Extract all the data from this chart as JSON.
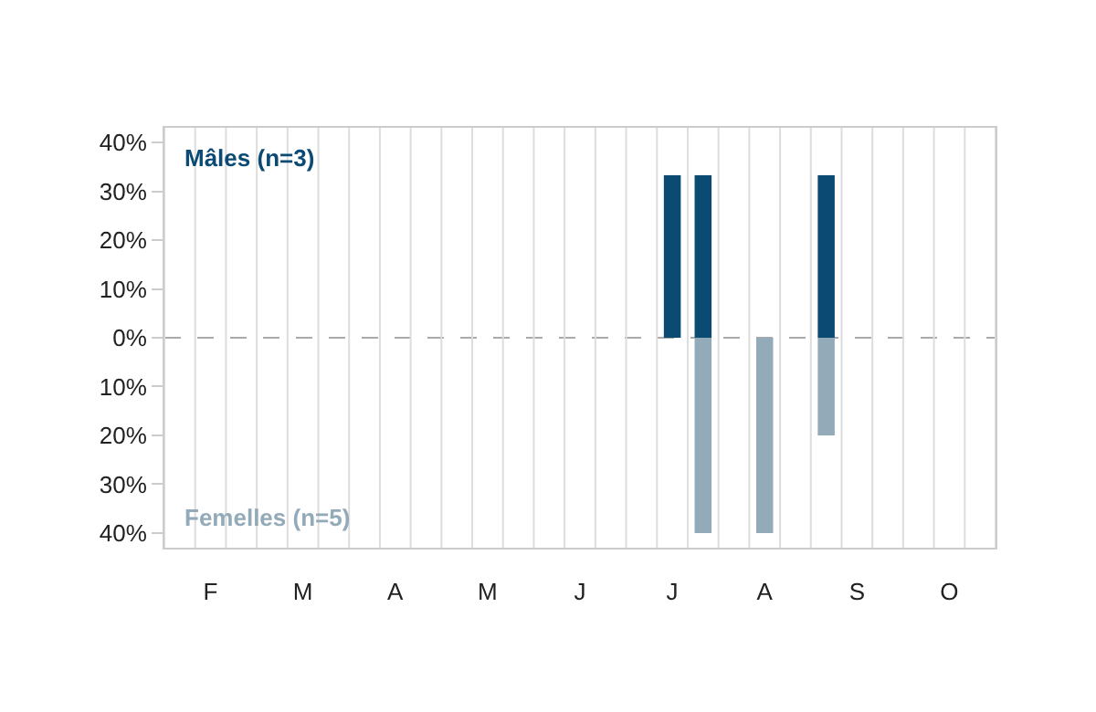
{
  "chart_data": {
    "type": "bar",
    "stacked": true,
    "categories": [
      null,
      "F",
      null,
      null,
      "M",
      null,
      null,
      "A",
      null,
      null,
      "M",
      null,
      null,
      "J",
      null,
      null,
      "J",
      null,
      null,
      "A",
      null,
      null,
      "S",
      null,
      null,
      "O",
      null
    ],
    "series": [
      {
        "name": "Mâles (n=3)",
        "color": "#0b4a73",
        "values": [
          null,
          null,
          null,
          null,
          null,
          null,
          null,
          null,
          null,
          null,
          null,
          null,
          null,
          null,
          null,
          null,
          33.3,
          33.3,
          null,
          null,
          null,
          33.3,
          null,
          null,
          null,
          null,
          null
        ]
      },
      {
        "name": "Femelles (n=5)",
        "color": "#93aab9",
        "values": [
          null,
          null,
          null,
          null,
          null,
          null,
          null,
          null,
          null,
          null,
          null,
          null,
          null,
          null,
          null,
          null,
          null,
          -40,
          null,
          -40,
          null,
          -20,
          null,
          null,
          null,
          null,
          null
        ]
      }
    ],
    "ylim": [
      -43,
      43
    ],
    "yticks": [
      {
        "value": -40,
        "label": "40%"
      },
      {
        "value": -30,
        "label": "30%"
      },
      {
        "value": -20,
        "label": "20%"
      },
      {
        "value": -10,
        "label": "10%"
      },
      {
        "value": 0,
        "label": "0%"
      },
      {
        "value": 10,
        "label": "10%"
      },
      {
        "value": 20,
        "label": "20%"
      },
      {
        "value": 30,
        "label": "30%"
      },
      {
        "value": 40,
        "label": "40%"
      }
    ],
    "ref_lines": [
      {
        "axis": "y",
        "value": 0,
        "color": "#aaaaaa",
        "line_style": "dashed"
      }
    ],
    "grid": "x",
    "legend": false
  }
}
